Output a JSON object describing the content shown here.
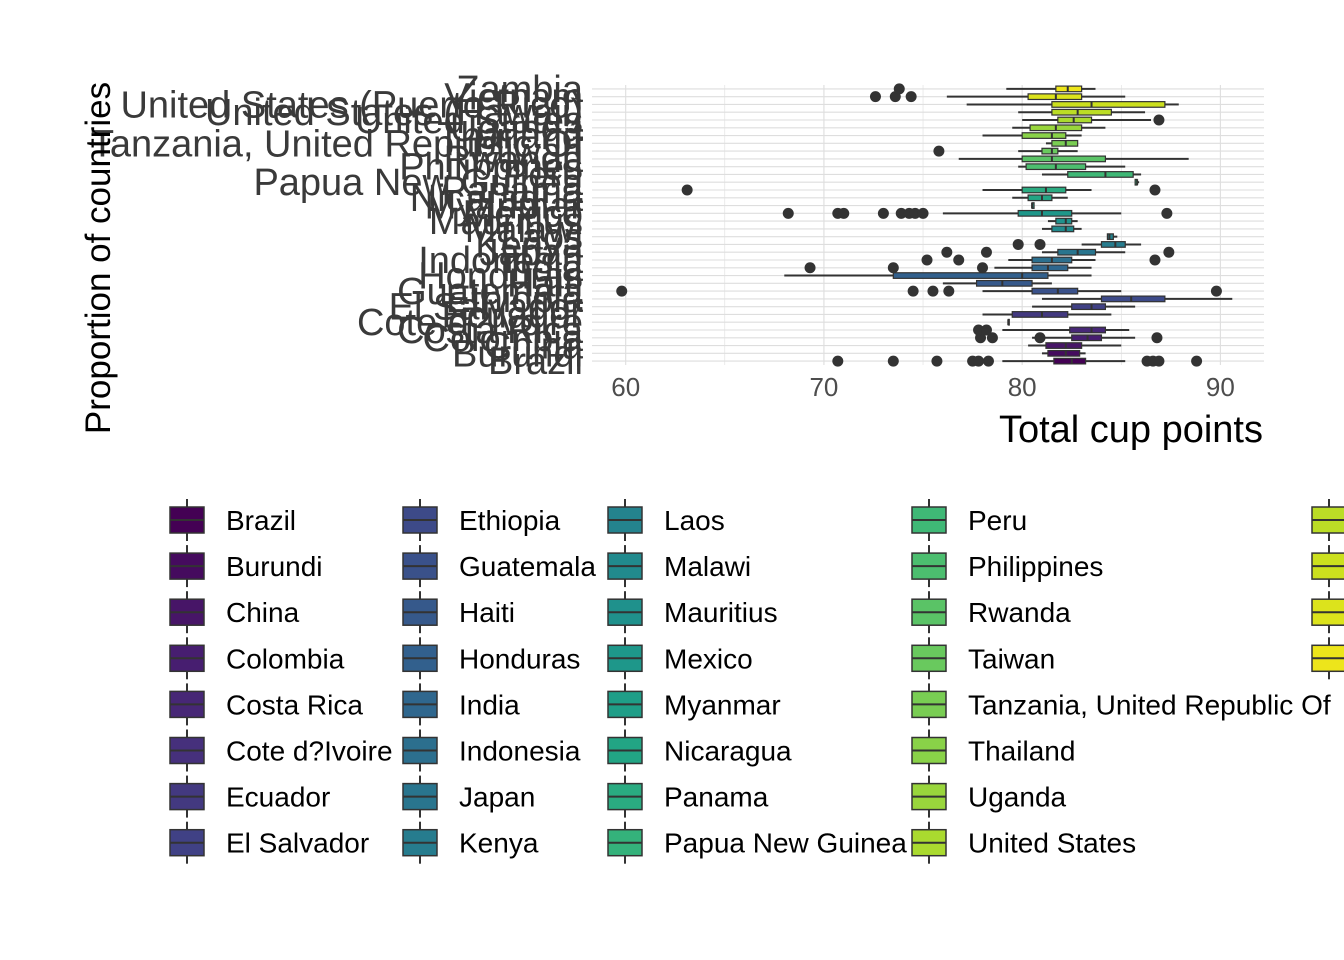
{
  "chart_data": {
    "type": "boxplot",
    "orientation": "horizontal",
    "title": "",
    "xlabel": "Total cup points",
    "ylabel": "Proportion of countries",
    "xlim": [
      58.3,
      92.2
    ],
    "x_ticks": [
      60,
      70,
      80,
      90
    ],
    "grid": true,
    "legend_position": "bottom",
    "colormap": "viridis",
    "categories": [
      "Brazil",
      "Burundi",
      "China",
      "Colombia",
      "Costa Rica",
      "Cote d?Ivoire",
      "Ecuador",
      "El Salvador",
      "Ethiopia",
      "Guatemala",
      "Haiti",
      "Honduras",
      "India",
      "Indonesia",
      "Japan",
      "Kenya",
      "Laos",
      "Malawi",
      "Mauritius",
      "Mexico",
      "Myanmar",
      "Nicaragua",
      "Panama",
      "Papua New Guinea",
      "Peru",
      "Philippines",
      "Rwanda",
      "Taiwan",
      "Tanzania, United Republic Of",
      "Thailand",
      "Uganda",
      "United States",
      "United States (Hawaii)",
      "United States (Puerto Rico)",
      "Vietnam",
      "Zambia"
    ],
    "series": [
      {
        "name": "Brazil",
        "min": 79.0,
        "q1": 81.6,
        "median": 82.5,
        "q3": 83.2,
        "max": 85.2,
        "outliers": [
          70.7,
          73.5,
          75.7,
          77.5,
          77.8,
          78.3,
          86.3,
          86.6,
          86.9,
          88.8
        ],
        "color": "#440154"
      },
      {
        "name": "Burundi",
        "min": 81.0,
        "q1": 81.3,
        "median": 82.2,
        "q3": 82.9,
        "max": 83.2,
        "outliers": [],
        "color": "#450b5e"
      },
      {
        "name": "China",
        "min": 80.3,
        "q1": 81.2,
        "median": 82.2,
        "q3": 83.0,
        "max": 85.0,
        "outliers": [],
        "color": "#471567"
      },
      {
        "name": "Colombia",
        "min": 80.5,
        "q1": 82.5,
        "median": 83.3,
        "q3": 84.0,
        "max": 85.7,
        "outliers": [
          77.9,
          78.5,
          80.9,
          86.8
        ],
        "color": "#471e70"
      },
      {
        "name": "Costa Rica",
        "min": 79.0,
        "q1": 82.4,
        "median": 83.5,
        "q3": 84.2,
        "max": 85.4,
        "outliers": [
          77.8,
          78.2
        ],
        "color": "#472776"
      },
      {
        "name": "Cote d?Ivoire",
        "min": 79.3,
        "q1": 79.3,
        "median": 79.3,
        "q3": 79.3,
        "max": 79.3,
        "outliers": [],
        "color": "#46307c"
      },
      {
        "name": "Ecuador",
        "min": 78.0,
        "q1": 79.5,
        "median": 81.0,
        "q3": 82.3,
        "max": 84.5,
        "outliers": [],
        "color": "#433980"
      },
      {
        "name": "El Salvador",
        "min": 80.5,
        "q1": 82.5,
        "median": 83.5,
        "q3": 84.2,
        "max": 85.7,
        "outliers": [],
        "color": "#404185"
      },
      {
        "name": "Ethiopia",
        "min": 81.0,
        "q1": 84.0,
        "median": 85.5,
        "q3": 87.2,
        "max": 90.6,
        "outliers": [],
        "color": "#3d4a88"
      },
      {
        "name": "Guatemala",
        "min": 78.0,
        "q1": 80.5,
        "median": 81.8,
        "q3": 82.8,
        "max": 85.0,
        "outliers": [
          59.8,
          74.5,
          75.5,
          76.3,
          89.8
        ],
        "color": "#3a518a"
      },
      {
        "name": "Haiti",
        "min": 76.0,
        "q1": 77.7,
        "median": 79.0,
        "q3": 80.5,
        "max": 81.5,
        "outliers": [],
        "color": "#36598b"
      },
      {
        "name": "Honduras",
        "min": 68.0,
        "q1": 73.5,
        "median": 80.0,
        "q3": 81.3,
        "max": 83.5,
        "outliers": [],
        "color": "#32608d"
      },
      {
        "name": "India",
        "min": 78.6,
        "q1": 80.5,
        "median": 81.3,
        "q3": 82.3,
        "max": 83.5,
        "outliers": [
          69.3,
          73.5,
          78.0
        ],
        "color": "#2f678e"
      },
      {
        "name": "Indonesia",
        "min": 79.3,
        "q1": 80.5,
        "median": 81.5,
        "q3": 82.5,
        "max": 83.7,
        "outliers": [
          75.2,
          76.8,
          86.7
        ],
        "color": "#2c6f8e"
      },
      {
        "name": "Japan",
        "min": 81.0,
        "q1": 81.8,
        "median": 82.8,
        "q3": 83.7,
        "max": 85.2,
        "outliers": [
          76.2,
          78.2,
          87.4
        ],
        "color": "#29758e"
      },
      {
        "name": "Kenya",
        "min": 83.0,
        "q1": 84.0,
        "median": 84.7,
        "q3": 85.2,
        "max": 86.0,
        "outliers": [
          79.8,
          80.9
        ],
        "color": "#267c8e"
      },
      {
        "name": "Laos",
        "min": 84.3,
        "q1": 84.3,
        "median": 84.4,
        "q3": 84.6,
        "max": 84.8,
        "outliers": [],
        "color": "#24838e"
      },
      {
        "name": "Malawi",
        "min": 81.0,
        "q1": 81.5,
        "median": 82.2,
        "q3": 82.6,
        "max": 83.0,
        "outliers": [],
        "color": "#218a8d"
      },
      {
        "name": "Mauritius",
        "min": 81.3,
        "q1": 81.7,
        "median": 82.2,
        "q3": 82.5,
        "max": 82.8,
        "outliers": [],
        "color": "#1f918c"
      },
      {
        "name": "Mexico",
        "min": 76.0,
        "q1": 79.8,
        "median": 81.0,
        "q3": 82.5,
        "max": 85.0,
        "outliers": [
          68.2,
          70.7,
          71.0,
          73.0,
          73.9,
          74.3,
          74.6,
          75.0,
          87.3
        ],
        "color": "#1e978a"
      },
      {
        "name": "Myanmar",
        "min": 80.5,
        "q1": 80.5,
        "median": 80.5,
        "q3": 80.6,
        "max": 80.6,
        "outliers": [],
        "color": "#1f9e88"
      },
      {
        "name": "Nicaragua",
        "min": 79.5,
        "q1": 80.3,
        "median": 81.0,
        "q3": 81.5,
        "max": 82.3,
        "outliers": [],
        "color": "#22a584"
      },
      {
        "name": "Panama",
        "min": 78.0,
        "q1": 80.0,
        "median": 81.2,
        "q3": 82.2,
        "max": 83.5,
        "outliers": [
          63.1,
          86.7
        ],
        "color": "#2aab81"
      },
      {
        "name": "Papua New Guinea",
        "min": 85.7,
        "q1": 85.7,
        "median": 85.8,
        "q3": 85.8,
        "max": 85.9,
        "outliers": [],
        "color": "#34b27b"
      },
      {
        "name": "Peru",
        "min": 81.0,
        "q1": 82.3,
        "median": 84.2,
        "q3": 85.6,
        "max": 86.0,
        "outliers": [],
        "color": "#3fb876"
      },
      {
        "name": "Philippines",
        "min": 79.8,
        "q1": 80.2,
        "median": 81.7,
        "q3": 83.2,
        "max": 85.2,
        "outliers": [],
        "color": "#4cbe6f"
      },
      {
        "name": "Rwanda",
        "min": 76.8,
        "q1": 80.0,
        "median": 81.5,
        "q3": 84.2,
        "max": 88.4,
        "outliers": [],
        "color": "#5ac366"
      },
      {
        "name": "Taiwan",
        "min": 79.8,
        "q1": 81.0,
        "median": 81.5,
        "q3": 81.8,
        "max": 82.8,
        "outliers": [
          75.8
        ],
        "color": "#69c95e"
      },
      {
        "name": "Tanzania, United Republic Of",
        "min": 81.2,
        "q1": 81.5,
        "median": 82.2,
        "q3": 82.8,
        "max": 82.8,
        "outliers": [],
        "color": "#79cd53"
      },
      {
        "name": "Thailand",
        "min": 78.0,
        "q1": 80.0,
        "median": 81.5,
        "q3": 82.2,
        "max": 83.0,
        "outliers": [],
        "color": "#89d248"
      },
      {
        "name": "Uganda",
        "min": 79.5,
        "q1": 80.4,
        "median": 81.7,
        "q3": 83.0,
        "max": 84.2,
        "outliers": [],
        "color": "#99d63c"
      },
      {
        "name": "United States",
        "min": 80.0,
        "q1": 81.8,
        "median": 82.6,
        "q3": 83.5,
        "max": 86.5,
        "outliers": [
          86.9
        ],
        "color": "#aada2f"
      },
      {
        "name": "United States (Hawaii)",
        "min": 79.8,
        "q1": 81.5,
        "median": 82.8,
        "q3": 84.5,
        "max": 86.2,
        "outliers": [],
        "color": "#bbdd26"
      },
      {
        "name": "United States (Puerto Rico)",
        "min": 77.2,
        "q1": 81.5,
        "median": 83.5,
        "q3": 87.2,
        "max": 87.9,
        "outliers": [],
        "color": "#cce01e"
      },
      {
        "name": "Vietnam",
        "min": 76.2,
        "q1": 80.3,
        "median": 81.7,
        "q3": 83.0,
        "max": 85.2,
        "outliers": [
          72.6,
          73.6,
          74.4
        ],
        "color": "#dce31c"
      },
      {
        "name": "Zambia",
        "min": 79.2,
        "q1": 81.7,
        "median": 82.3,
        "q3": 83.0,
        "max": 83.7,
        "outliers": [
          73.8
        ],
        "color": "#ede51b"
      }
    ]
  }
}
